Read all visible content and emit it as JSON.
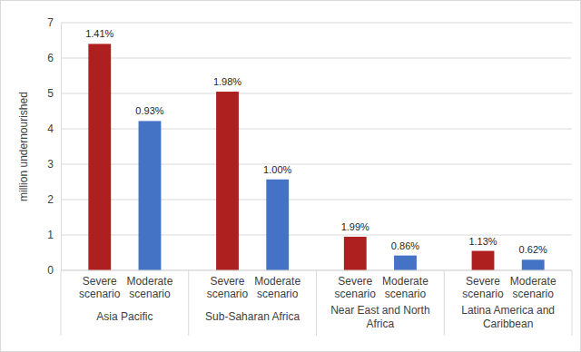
{
  "chart_data": {
    "type": "bar",
    "y_label": "million undernourished",
    "categories": [
      "Asia Pacific",
      "Sub-Saharan Africa",
      "Near East and North Africa",
      "Latina America and Caribbean"
    ],
    "series": [
      {
        "name": "Severe scenario",
        "color": "#ae1f1f",
        "values": [
          6.4,
          5.05,
          0.95,
          0.55
        ],
        "annotations": [
          "1.41%",
          "1.98%",
          "1.99%",
          "1.13%"
        ]
      },
      {
        "name": "Moderate scenario",
        "color": "#4472c4",
        "values": [
          4.22,
          2.57,
          0.42,
          0.3
        ],
        "annotations": [
          "0.93%",
          "1.00%",
          "0.86%",
          "0.62%"
        ]
      }
    ],
    "ylim": [
      0,
      7
    ],
    "yticks": [
      0,
      1,
      2,
      3,
      4,
      5,
      6,
      7
    ],
    "grid": true
  }
}
